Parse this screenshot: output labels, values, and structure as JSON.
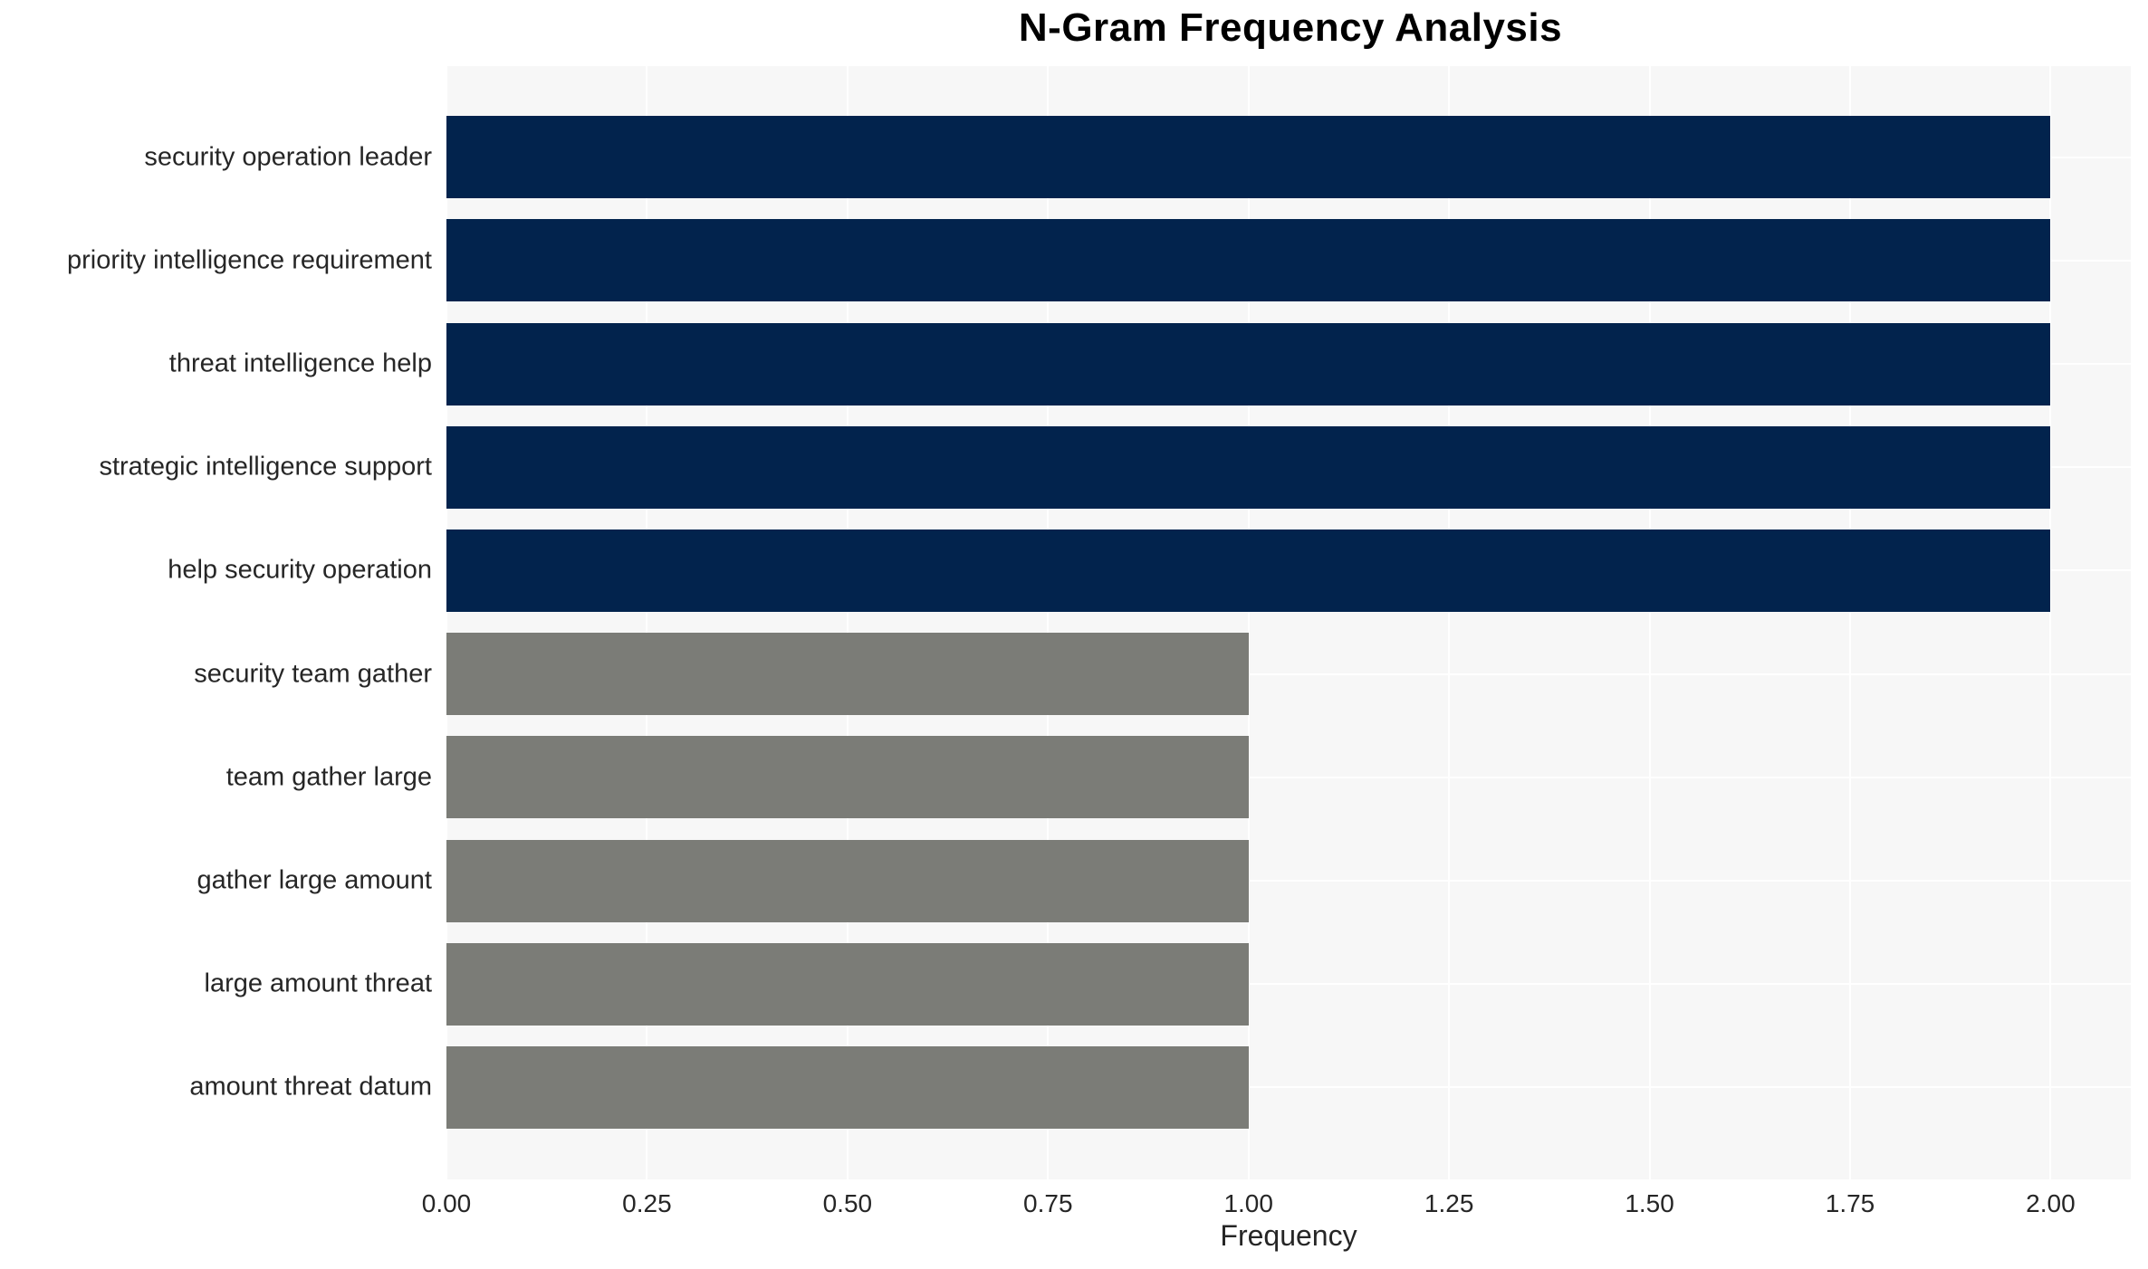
{
  "chart_data": {
    "type": "bar",
    "orientation": "horizontal",
    "title": "N-Gram Frequency Analysis",
    "xlabel": "Frequency",
    "ylabel": "",
    "categories": [
      "security operation leader",
      "priority intelligence requirement",
      "threat intelligence help",
      "strategic intelligence support",
      "help security operation",
      "security team gather",
      "team gather large",
      "gather large amount",
      "large amount threat",
      "amount threat datum"
    ],
    "values": [
      2,
      2,
      2,
      2,
      2,
      1,
      1,
      1,
      1,
      1
    ],
    "bar_colors": [
      "#02234d",
      "#02234d",
      "#02234d",
      "#02234d",
      "#02234d",
      "#7b7c77",
      "#7b7c77",
      "#7b7c77",
      "#7b7c77",
      "#7b7c77"
    ],
    "xlim": [
      0,
      2.1
    ],
    "xticks": [
      0.0,
      0.25,
      0.5,
      0.75,
      1.0,
      1.25,
      1.5,
      1.75,
      2.0
    ],
    "xtick_labels": [
      "0.00",
      "0.25",
      "0.50",
      "0.75",
      "1.00",
      "1.25",
      "1.50",
      "1.75",
      "2.00"
    ],
    "grid": true,
    "legend": "none",
    "style": {
      "plot_background": "#f7f7f7",
      "grid_color": "#ffffff",
      "high_frequency_color": "#02234d",
      "low_frequency_color": "#7b7c77",
      "text_color": "#262626",
      "title_color": "#000000"
    }
  }
}
